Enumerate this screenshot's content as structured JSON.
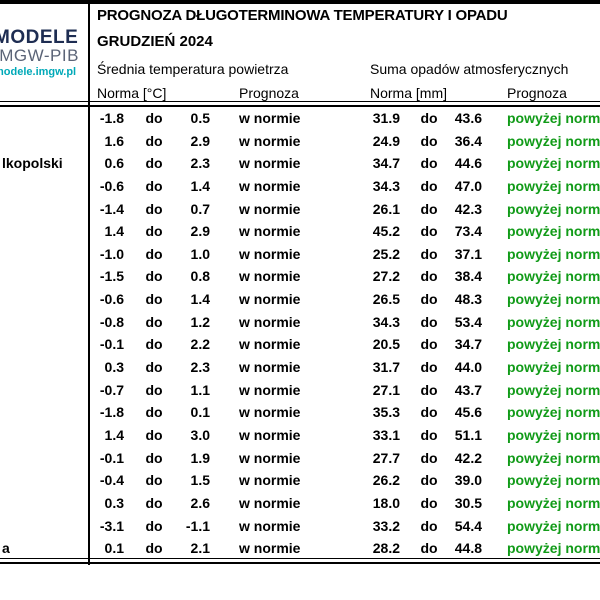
{
  "logo": {
    "line1": "MODELE",
    "line2": "IMGW-PIB",
    "line3": "modele.imgw.pl"
  },
  "header": {
    "title": "PROGNOZA DŁUGOTERMINOWA TEMPERATURY I OPADU",
    "subtitle": "GRUDZIEŃ 2024"
  },
  "table": {
    "section_headers": {
      "temperature": "Średnia temperatura powietrza",
      "precipitation": "Suma opadów atmosferycznych"
    },
    "column_headers": {
      "temp_norm": "Norma [°C]",
      "temp_forecast": "Prognoza",
      "precip_norm": "Norma [mm]",
      "precip_forecast": "Prognoza"
    },
    "separator_label": "do",
    "rows": [
      {
        "city": "",
        "temp_min": "-1.8",
        "temp_max": "0.5",
        "temp_forecast": "w normie",
        "precip_min": "31.9",
        "precip_max": "43.6",
        "precip_forecast": "powyżej normy"
      },
      {
        "city": "",
        "temp_min": "1.6",
        "temp_max": "2.9",
        "temp_forecast": "w normie",
        "precip_min": "24.9",
        "precip_max": "36.4",
        "precip_forecast": "powyżej normy"
      },
      {
        "city": "lkopolski",
        "temp_min": "0.6",
        "temp_max": "2.3",
        "temp_forecast": "w normie",
        "precip_min": "34.7",
        "precip_max": "44.6",
        "precip_forecast": "powyżej normy"
      },
      {
        "city": "",
        "temp_min": "-0.6",
        "temp_max": "1.4",
        "temp_forecast": "w normie",
        "precip_min": "34.3",
        "precip_max": "47.0",
        "precip_forecast": "powyżej normy"
      },
      {
        "city": "",
        "temp_min": "-1.4",
        "temp_max": "0.7",
        "temp_forecast": "w normie",
        "precip_min": "26.1",
        "precip_max": "42.3",
        "precip_forecast": "powyżej normy"
      },
      {
        "city": "",
        "temp_min": "1.4",
        "temp_max": "2.9",
        "temp_forecast": "w normie",
        "precip_min": "45.2",
        "precip_max": "73.4",
        "precip_forecast": "powyżej normy"
      },
      {
        "city": "",
        "temp_min": "-1.0",
        "temp_max": "1.0",
        "temp_forecast": "w normie",
        "precip_min": "25.2",
        "precip_max": "37.1",
        "precip_forecast": "powyżej normy"
      },
      {
        "city": "",
        "temp_min": "-1.5",
        "temp_max": "0.8",
        "temp_forecast": "w normie",
        "precip_min": "27.2",
        "precip_max": "38.4",
        "precip_forecast": "powyżej normy"
      },
      {
        "city": "",
        "temp_min": "-0.6",
        "temp_max": "1.4",
        "temp_forecast": "w normie",
        "precip_min": "26.5",
        "precip_max": "48.3",
        "precip_forecast": "powyżej normy"
      },
      {
        "city": "",
        "temp_min": "-0.8",
        "temp_max": "1.2",
        "temp_forecast": "w normie",
        "precip_min": "34.3",
        "precip_max": "53.4",
        "precip_forecast": "powyżej normy"
      },
      {
        "city": "",
        "temp_min": "-0.1",
        "temp_max": "2.2",
        "temp_forecast": "w normie",
        "precip_min": "20.5",
        "precip_max": "34.7",
        "precip_forecast": "powyżej normy"
      },
      {
        "city": "",
        "temp_min": "0.3",
        "temp_max": "2.3",
        "temp_forecast": "w normie",
        "precip_min": "31.7",
        "precip_max": "44.0",
        "precip_forecast": "powyżej normy"
      },
      {
        "city": "",
        "temp_min": "-0.7",
        "temp_max": "1.1",
        "temp_forecast": "w normie",
        "precip_min": "27.1",
        "precip_max": "43.7",
        "precip_forecast": "powyżej normy"
      },
      {
        "city": "",
        "temp_min": "-1.8",
        "temp_max": "0.1",
        "temp_forecast": "w normie",
        "precip_min": "35.3",
        "precip_max": "45.6",
        "precip_forecast": "powyżej normy"
      },
      {
        "city": "",
        "temp_min": "1.4",
        "temp_max": "3.0",
        "temp_forecast": "w normie",
        "precip_min": "33.1",
        "precip_max": "51.1",
        "precip_forecast": "powyżej normy"
      },
      {
        "city": "",
        "temp_min": "-0.1",
        "temp_max": "1.9",
        "temp_forecast": "w normie",
        "precip_min": "27.7",
        "precip_max": "42.2",
        "precip_forecast": "powyżej normy"
      },
      {
        "city": "",
        "temp_min": "-0.4",
        "temp_max": "1.5",
        "temp_forecast": "w normie",
        "precip_min": "26.2",
        "precip_max": "39.0",
        "precip_forecast": "powyżej normy"
      },
      {
        "city": "",
        "temp_min": "0.3",
        "temp_max": "2.6",
        "temp_forecast": "w normie",
        "precip_min": "18.0",
        "precip_max": "30.5",
        "precip_forecast": "powyżej normy"
      },
      {
        "city": "",
        "temp_min": "-3.1",
        "temp_max": "-1.1",
        "temp_forecast": "w normie",
        "precip_min": "33.2",
        "precip_max": "54.4",
        "precip_forecast": "powyżej normy"
      },
      {
        "city": "a",
        "temp_min": "0.1",
        "temp_max": "2.1",
        "temp_forecast": "w normie",
        "precip_min": "28.2",
        "precip_max": "44.8",
        "precip_forecast": "powyżej normy"
      }
    ]
  },
  "colors": {
    "forecast_above_norm_green": "#119b18",
    "logo_navy": "#1e2d52",
    "logo_gray_blue": "#5b6477",
    "logo_teal": "#00a9b8",
    "border_black": "#000000"
  }
}
